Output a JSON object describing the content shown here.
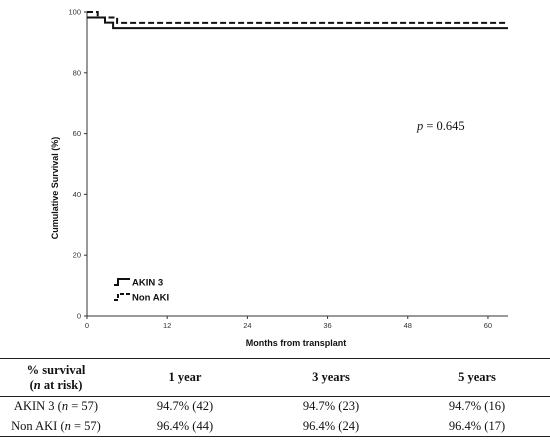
{
  "chart_data": {
    "type": "line",
    "subtype": "kaplan-meier step",
    "xlabel": "Months from transplant",
    "ylabel": "Cumulative Survival (%)",
    "xlim": [
      0,
      63
    ],
    "ylim": [
      0,
      100
    ],
    "xticks": [
      0,
      12,
      24,
      36,
      48,
      60
    ],
    "yticks": [
      0,
      20,
      40,
      60,
      80,
      100
    ],
    "grid": false,
    "legend_position": "bottom-left",
    "series": [
      {
        "name": "AKIN 3",
        "line_style": "solid",
        "points": [
          [
            0,
            98.2
          ],
          [
            2.7,
            98.2
          ],
          [
            2.7,
            96.5
          ],
          [
            3.9,
            96.5
          ],
          [
            3.9,
            94.7
          ],
          [
            63,
            94.7
          ]
        ]
      },
      {
        "name": "Non AKI",
        "line_style": "dashed",
        "points": [
          [
            0,
            100
          ],
          [
            1.6,
            100
          ],
          [
            1.6,
            98.2
          ],
          [
            4.5,
            98.2
          ],
          [
            4.5,
            96.4
          ],
          [
            63,
            96.4
          ]
        ]
      }
    ],
    "annotation": {
      "prefix": "p",
      "text": " = 0.645"
    }
  },
  "table": {
    "header": {
      "label_line1": "% survival",
      "label_line2_n": "n",
      "label_line2_rest": " at risk)",
      "label_line2_open": "(",
      "columns": [
        "1 year",
        "3 years",
        "5 years"
      ]
    },
    "rows": [
      {
        "group": "AKIN 3",
        "n_open": " (",
        "n_italic": "n",
        "n_rest": " = 57)",
        "values": [
          "94.7% (42)",
          "94.7% (23)",
          "94.7% (16)"
        ]
      },
      {
        "group": "Non AKI",
        "n_open": " (",
        "n_italic": "n",
        "n_rest": " = 57)",
        "values": [
          "96.4% (44)",
          "96.4% (24)",
          "96.4% (17)"
        ]
      }
    ]
  },
  "colors": {
    "line": "#111111",
    "axis": "#333333",
    "text": "#111111"
  }
}
